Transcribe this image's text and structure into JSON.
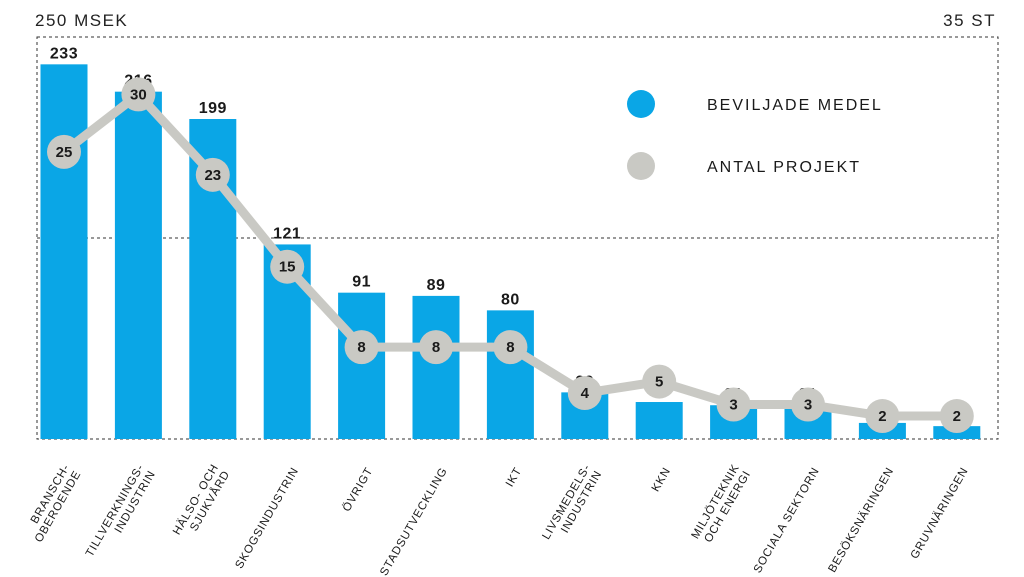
{
  "chart_data": {
    "type": "bar",
    "title": "",
    "y_left_label": "250 MSEK",
    "y_right_label": "35 ST",
    "ylim_left": [
      0,
      250
    ],
    "ylim_right": [
      0,
      35
    ],
    "midline_left": 125,
    "categories": [
      [
        "BRANSCH-",
        "OBEROENDE"
      ],
      [
        "TILLVERKNINGS-",
        "INDUSTRIN"
      ],
      [
        "HÄLSO- OCH",
        "SJUKVÅRD"
      ],
      [
        "SKOGSINDUSTRIN"
      ],
      [
        "ÖVRIGT"
      ],
      [
        "STADSUTVECKLING"
      ],
      [
        "IKT"
      ],
      [
        "LIVSMEDELS-",
        "INDUSTRIN"
      ],
      [
        "KKN"
      ],
      [
        "MILJÖTEKNIK",
        "OCH ENERGI"
      ],
      [
        "SOCIALA SEKTORN"
      ],
      [
        "BESÖKSNÄRINGEN"
      ],
      [
        "GRUVNÄRINGEN"
      ]
    ],
    "series": [
      {
        "name": "BEVILJADE MEDEL",
        "type": "bar",
        "axis": "left",
        "color": "#0aa6e6",
        "values": [
          233,
          216,
          199,
          121,
          91,
          89,
          80,
          29,
          23,
          21,
          21,
          10,
          8
        ]
      },
      {
        "name": "ANTAL PROJEKT",
        "type": "line",
        "axis": "right",
        "color": "#c9c9c4",
        "values": [
          25,
          30,
          23,
          15,
          8,
          8,
          8,
          4,
          5,
          3,
          3,
          2,
          2
        ]
      }
    ],
    "legend": [
      "BEVILJADE MEDEL",
      "ANTAL PROJEKT"
    ],
    "legend_position": "top-right"
  }
}
